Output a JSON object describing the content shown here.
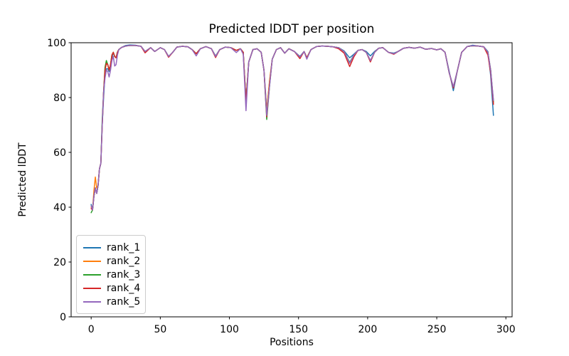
{
  "figure": {
    "background": "#ffffff",
    "spine_color": "#000000",
    "tick_color": "#000000"
  },
  "chart_data": {
    "type": "line",
    "title": "Predicted lDDT per position",
    "xlabel": "Positions",
    "ylabel": "Predicted lDDT",
    "xlim": [
      -14.5,
      304.5
    ],
    "ylim": [
      0,
      100
    ],
    "xticks": [
      0,
      50,
      100,
      150,
      200,
      250,
      300
    ],
    "yticks": [
      0,
      20,
      40,
      60,
      80,
      100
    ],
    "grid": false,
    "legend_position": "lower-left",
    "line_width": 1.5,
    "x": [
      0,
      1,
      2,
      3,
      4,
      5,
      6,
      7,
      8,
      9,
      10,
      11,
      12,
      13,
      14,
      15,
      16,
      17,
      18,
      19,
      20,
      22,
      25,
      28,
      32,
      36,
      39,
      43,
      46,
      50,
      53,
      56,
      59,
      62,
      66,
      70,
      73,
      76,
      79,
      83,
      87,
      90,
      93,
      97,
      101,
      105,
      108,
      110,
      112,
      114,
      117,
      120,
      123,
      125,
      127,
      129,
      131,
      134,
      137,
      140,
      143,
      147,
      151,
      154,
      156,
      159,
      163,
      167,
      171,
      175,
      179,
      183,
      187,
      190,
      193,
      196,
      199,
      202,
      205,
      208,
      211,
      215,
      219,
      222,
      226,
      230,
      234,
      238,
      242,
      246,
      250,
      253,
      256,
      259,
      262,
      265,
      268,
      272,
      276,
      280,
      284,
      287,
      289,
      291
    ],
    "series": [
      {
        "name": "rank_1",
        "color": "#1f77b4",
        "values": [
          41,
          39,
          44,
          47,
          45,
          48,
          54,
          56,
          70,
          80,
          88.5,
          90.5,
          90.5,
          89.5,
          91,
          94.5,
          96.5,
          95,
          94.5,
          96.5,
          97.5,
          98.3,
          99,
          99.2,
          99.1,
          98.7,
          96.8,
          98.2,
          96.8,
          98.2,
          97.5,
          95,
          96.5,
          98.4,
          98.7,
          98.5,
          97.5,
          96,
          97.8,
          98.6,
          97.8,
          95.2,
          97.5,
          98.4,
          98.2,
          97.2,
          97.8,
          96.5,
          79,
          93,
          97.5,
          97.8,
          96.5,
          90,
          75.5,
          85.5,
          94,
          97.5,
          98.2,
          96.2,
          97.8,
          96.8,
          95,
          96.8,
          94.5,
          97.5,
          98.6,
          98.8,
          98.7,
          98.5,
          98.2,
          97,
          94.5,
          95.8,
          97.2,
          97.5,
          96.8,
          95.2,
          96.8,
          98,
          98.2,
          96.5,
          96.2,
          96.8,
          98,
          98.3,
          98,
          98.4,
          97.6,
          97.9,
          97.4,
          97.8,
          96.5,
          89.5,
          82.5,
          90,
          96.5,
          98.6,
          99.1,
          98.8,
          98.5,
          96.8,
          88,
          73.5
        ]
      },
      {
        "name": "rank_2",
        "color": "#ff7f0e",
        "values": [
          40,
          39,
          46,
          51,
          47,
          48,
          54,
          56,
          70,
          82,
          90,
          92.5,
          92,
          90,
          92,
          95.5,
          96.5,
          95,
          94.5,
          96.5,
          97.5,
          98.3,
          98.8,
          99,
          99,
          98.7,
          96.8,
          98.2,
          96.8,
          98.2,
          97.5,
          95,
          96.5,
          98.4,
          98.7,
          98.5,
          97.5,
          96,
          97.8,
          98.6,
          97.8,
          95,
          97.5,
          98.4,
          98.2,
          97.2,
          97.8,
          96.5,
          78.5,
          93,
          97.5,
          97.8,
          96.5,
          90,
          75,
          86,
          94,
          97.5,
          98.2,
          96.2,
          97.8,
          96.8,
          94.8,
          96.8,
          94.5,
          97.5,
          98.6,
          98.8,
          98.7,
          98.5,
          98.2,
          96.8,
          92.5,
          95.5,
          97.2,
          97.5,
          96.5,
          93.5,
          96.5,
          98,
          98.2,
          96.5,
          96,
          96.8,
          98,
          98.3,
          98,
          98.4,
          97.6,
          97.9,
          97.4,
          97.8,
          96.5,
          89,
          83.8,
          90,
          96.5,
          98.6,
          98.9,
          98.8,
          98.5,
          96.5,
          90,
          78
        ]
      },
      {
        "name": "rank_3",
        "color": "#2ca02c",
        "values": [
          38,
          39,
          44,
          47,
          45,
          48,
          54,
          56,
          72,
          82,
          91,
          93.5,
          92,
          90,
          92,
          95.5,
          96.5,
          95,
          94.5,
          96.5,
          97.5,
          98.3,
          98.8,
          99,
          99,
          98.7,
          96.8,
          98.2,
          96.8,
          98.2,
          97.5,
          95,
          96.5,
          98.4,
          98.7,
          98.5,
          97.5,
          96,
          97.8,
          98.6,
          97.8,
          95,
          97.5,
          98.4,
          98.2,
          97.2,
          97.8,
          96.5,
          78.5,
          93,
          97.5,
          97.8,
          96.5,
          90,
          72,
          84,
          94,
          97.5,
          98.2,
          96.2,
          97.8,
          96.8,
          94.8,
          96.8,
          94.5,
          97.5,
          98.6,
          98.8,
          98.7,
          98.5,
          98.2,
          96.8,
          92.8,
          95.5,
          97.2,
          97.5,
          96.5,
          93.2,
          96.5,
          98,
          98.2,
          96.5,
          96,
          96.8,
          98,
          98.3,
          98,
          98.4,
          97.6,
          97.9,
          97.4,
          97.8,
          96.5,
          89,
          83.8,
          90,
          96.5,
          98.6,
          98.9,
          98.8,
          98.5,
          96.5,
          90,
          78.5
        ]
      },
      {
        "name": "rank_4",
        "color": "#d62728",
        "values": [
          39.5,
          39,
          44,
          47,
          45,
          48,
          54,
          56,
          70,
          82,
          90,
          92.5,
          92,
          90,
          92,
          95.5,
          96.5,
          95,
          94.5,
          96.5,
          97.5,
          98.3,
          98.8,
          99,
          99,
          98.7,
          96.3,
          98.2,
          96.8,
          98.2,
          97.5,
          94.7,
          96.5,
          98.4,
          98.7,
          98.5,
          97.5,
          96,
          97.8,
          98.6,
          97.8,
          94.6,
          97.5,
          98.4,
          98.2,
          97.2,
          97.8,
          96.5,
          78.5,
          93,
          97.5,
          97.8,
          96.5,
          90,
          73,
          84.5,
          94,
          97.5,
          98.2,
          96.2,
          97.8,
          96.8,
          94.2,
          96.8,
          94.5,
          97.5,
          98.6,
          98.8,
          98.7,
          98.5,
          97.8,
          96.2,
          91.3,
          94.8,
          97.2,
          97.5,
          96.5,
          93,
          96.5,
          98,
          98.2,
          96.5,
          95.8,
          96.8,
          98,
          98.3,
          98,
          98.4,
          97.6,
          97.9,
          97.4,
          97.8,
          96.5,
          89,
          83.5,
          90,
          96.5,
          98.6,
          98.9,
          98.8,
          98.5,
          95.5,
          89,
          77.5
        ]
      },
      {
        "name": "rank_5",
        "color": "#9467bd",
        "values": [
          40.5,
          39,
          44,
          47,
          45,
          48,
          54,
          56,
          70,
          82,
          87,
          90,
          89.5,
          87.5,
          90,
          93.5,
          95,
          91.5,
          92,
          95.5,
          97.5,
          98.3,
          98.8,
          99,
          99,
          98.7,
          96.8,
          98.2,
          96.8,
          98.2,
          97.5,
          95,
          96.5,
          98.4,
          98.7,
          98.5,
          97.5,
          95.2,
          97.8,
          98.6,
          97.8,
          95,
          97.5,
          98.4,
          98.2,
          96.4,
          97.8,
          95.8,
          75.2,
          93,
          97.5,
          97.8,
          96.5,
          90,
          73.5,
          84,
          94,
          97.5,
          98.2,
          96.2,
          97.8,
          96.8,
          94.8,
          96.8,
          94,
          97.5,
          98.6,
          98.8,
          98.7,
          98.5,
          98.2,
          96.8,
          92.5,
          95.5,
          97.2,
          97.5,
          96.5,
          93.5,
          96.5,
          98,
          98.2,
          96.5,
          96,
          96.8,
          98,
          98.3,
          98,
          98.4,
          97.6,
          97.9,
          97.4,
          97.8,
          96.5,
          89,
          84,
          90,
          96.5,
          98.6,
          98.9,
          98.8,
          98.5,
          96.5,
          90,
          79
        ]
      }
    ]
  }
}
